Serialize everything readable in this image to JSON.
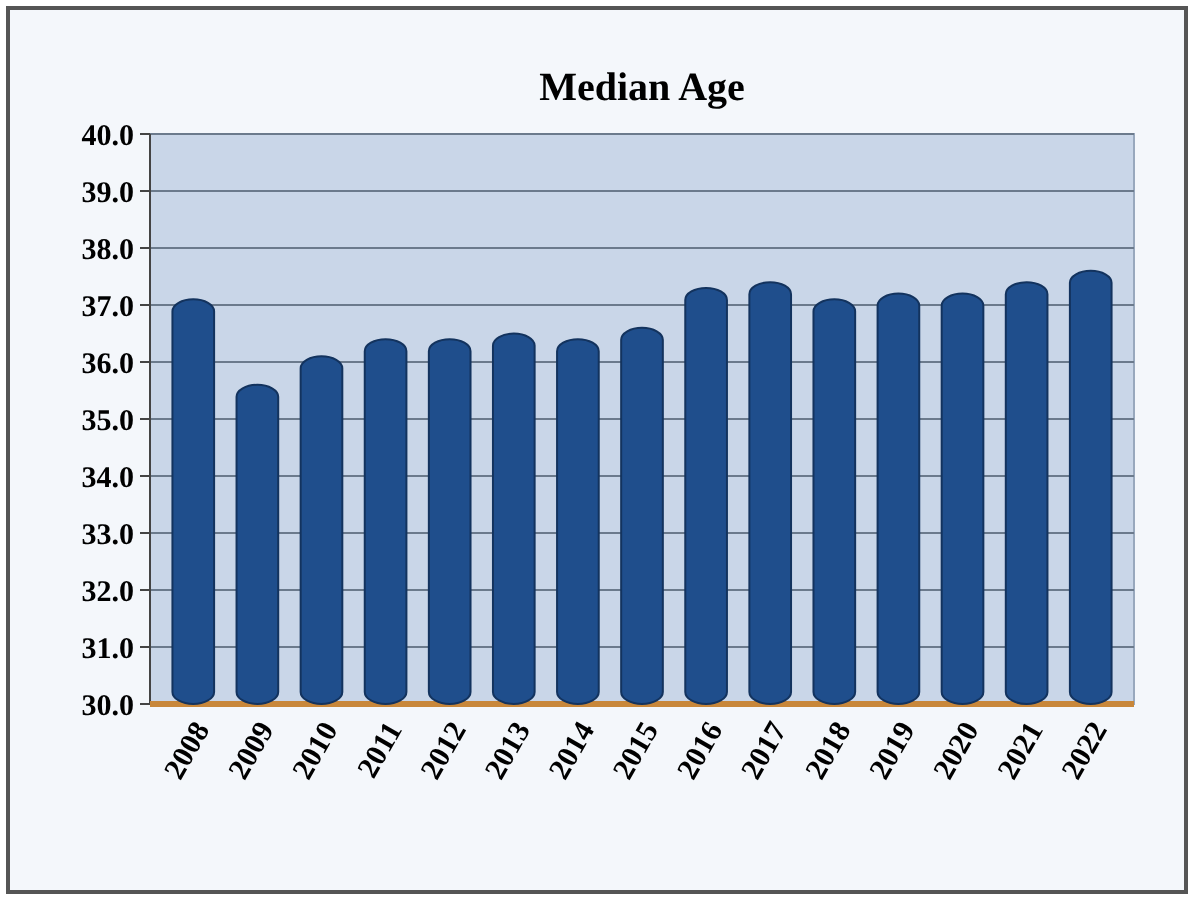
{
  "chart_data": {
    "type": "bar",
    "title": "Median Age",
    "categories": [
      "2008",
      "2009",
      "2010",
      "2011",
      "2012",
      "2013",
      "2014",
      "2015",
      "2016",
      "2017",
      "2018",
      "2019",
      "2020",
      "2021",
      "2022"
    ],
    "values": [
      37.1,
      35.6,
      36.1,
      36.4,
      36.4,
      36.5,
      36.4,
      36.6,
      37.3,
      37.4,
      37.1,
      37.2,
      37.2,
      37.4,
      37.6
    ],
    "color": "#1f4e8c",
    "ylim": [
      30,
      40
    ],
    "yticks": [
      {
        "value": 30,
        "label": "30.0"
      },
      {
        "value": 31,
        "label": "31.0"
      },
      {
        "value": 32,
        "label": "32.0"
      },
      {
        "value": 33,
        "label": "33.0"
      },
      {
        "value": 34,
        "label": "34.0"
      },
      {
        "value": 35,
        "label": "35.0"
      },
      {
        "value": 36,
        "label": "36.0"
      },
      {
        "value": 37,
        "label": "37.0"
      },
      {
        "value": 38,
        "label": "38.0"
      },
      {
        "value": 39,
        "label": "39.0"
      },
      {
        "value": 40,
        "label": "40.0"
      }
    ],
    "grid": "y"
  }
}
